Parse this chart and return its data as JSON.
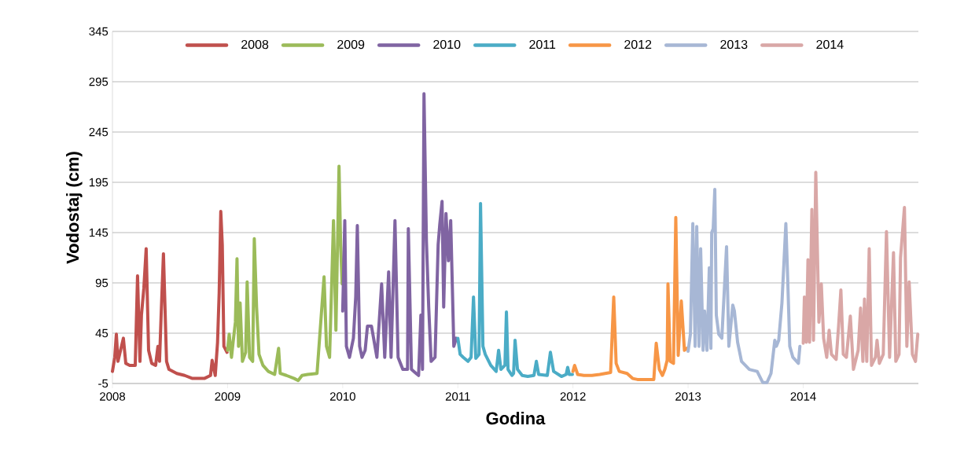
{
  "chart_data": {
    "type": "line",
    "xlabel": "Godina",
    "ylabel": "Vodostaj (cm)",
    "xlim": [
      2008,
      2015
    ],
    "xticks": [
      2008,
      2009,
      2010,
      2011,
      2012,
      2013,
      2014
    ],
    "ylim": [
      -5,
      345
    ],
    "yticks": [
      -5,
      45,
      95,
      145,
      195,
      245,
      295,
      345
    ],
    "grid": "y",
    "legend": "top",
    "line_style": "solid",
    "series": [
      {
        "name": "2008",
        "color": "#c0504d",
        "x": [
          2008.0,
          2008.02,
          2008.034,
          2008.048,
          2008.095,
          2008.116,
          2008.15,
          2008.198,
          2008.218,
          2008.239,
          2008.252,
          2008.273,
          2008.293,
          2008.314,
          2008.341,
          2008.375,
          2008.395,
          2008.409,
          2008.423,
          2008.443,
          2008.47,
          2008.491,
          2008.559,
          2008.627,
          2008.695,
          2008.798,
          2008.852,
          2008.866,
          2008.893,
          2008.913,
          2008.927,
          2008.941,
          2008.954,
          2008.968,
          2008.995
        ],
        "values": [
          7,
          21,
          44,
          17,
          40,
          15,
          13,
          13,
          102,
          17,
          63,
          90,
          129,
          28,
          15,
          13,
          32,
          17,
          63,
          124,
          17,
          9,
          5,
          3,
          0,
          0,
          3,
          18,
          3,
          36,
          85,
          166,
          133,
          32,
          26
        ]
      },
      {
        "name": "2009",
        "color": "#9bbb59",
        "x": [
          2009.0,
          2009.014,
          2009.034,
          2009.048,
          2009.068,
          2009.082,
          2009.095,
          2009.109,
          2009.129,
          2009.157,
          2009.17,
          2009.191,
          2009.218,
          2009.232,
          2009.252,
          2009.273,
          2009.307,
          2009.354,
          2009.409,
          2009.443,
          2009.457,
          2009.511,
          2009.579,
          2009.613,
          2009.647,
          2009.695,
          2009.777,
          2009.838,
          2009.859,
          2009.886,
          2009.92,
          2009.941,
          2009.968,
          2009.982,
          2009.995
        ],
        "values": [
          28,
          44,
          21,
          36,
          56,
          119,
          32,
          75,
          17,
          26,
          96,
          21,
          17,
          139,
          71,
          24,
          13,
          7,
          4,
          30,
          5,
          3,
          0,
          -2,
          3,
          4,
          5,
          101,
          32,
          21,
          157,
          48,
          211,
          133,
          94
        ]
      },
      {
        "name": "2010",
        "color": "#8064a2",
        "x": [
          2010.0,
          2010.018,
          2010.032,
          2010.059,
          2010.093,
          2010.113,
          2010.127,
          2010.147,
          2010.168,
          2010.195,
          2010.215,
          2010.25,
          2010.297,
          2010.338,
          2010.365,
          2010.399,
          2010.42,
          2010.454,
          2010.481,
          2010.522,
          2010.563,
          2010.57,
          2010.597,
          2010.638,
          2010.659,
          2010.679,
          2010.693,
          2010.706,
          2010.727,
          2010.747,
          2010.768,
          2010.802,
          2010.829,
          2010.843,
          2010.863,
          2010.877,
          2010.897,
          2010.918,
          2010.938,
          2010.965,
          2010.986
        ],
        "values": [
          67,
          157,
          32,
          21,
          40,
          81,
          152,
          32,
          21,
          28,
          52,
          52,
          21,
          94,
          21,
          106,
          21,
          157,
          21,
          9,
          9,
          149,
          9,
          5,
          3,
          63,
          9,
          283,
          137,
          71,
          17,
          21,
          133,
          153,
          176,
          71,
          164,
          117,
          157,
          32,
          40
        ]
      },
      {
        "name": "2011",
        "color": "#4bacc6",
        "x": [
          2011.0,
          2011.02,
          2011.047,
          2011.088,
          2011.115,
          2011.136,
          2011.156,
          2011.184,
          2011.197,
          2011.218,
          2011.238,
          2011.286,
          2011.333,
          2011.354,
          2011.374,
          2011.409,
          2011.422,
          2011.436,
          2011.47,
          2011.484,
          2011.497,
          2011.518,
          2011.559,
          2011.607,
          2011.661,
          2011.682,
          2011.702,
          2011.777,
          2011.804,
          2011.832,
          2011.9,
          2011.941,
          2011.954,
          2011.968,
          2011.995
        ],
        "values": [
          40,
          24,
          21,
          17,
          21,
          81,
          20,
          24,
          174,
          32,
          24,
          13,
          7,
          28,
          9,
          13,
          66,
          9,
          3,
          5,
          38,
          9,
          3,
          2,
          3,
          17,
          4,
          3,
          26,
          7,
          2,
          4,
          11,
          4,
          4
        ]
      },
      {
        "name": "2012",
        "color": "#f79646",
        "x": [
          2012.0,
          2012.014,
          2012.041,
          2012.095,
          2012.164,
          2012.232,
          2012.279,
          2012.327,
          2012.354,
          2012.375,
          2012.402,
          2012.47,
          2012.518,
          2012.56,
          2012.648,
          2012.702,
          2012.723,
          2012.75,
          2012.777,
          2012.798,
          2012.818,
          2012.825,
          2012.845,
          2012.873,
          2012.893,
          2012.914,
          2012.941,
          2012.968,
          2012.989
        ],
        "values": [
          7,
          13,
          4,
          3,
          3,
          4,
          5,
          6,
          81,
          15,
          7,
          5,
          0,
          -1,
          -1,
          -1,
          35,
          9,
          3,
          9,
          18,
          94,
          17,
          15,
          160,
          23,
          77,
          28,
          30
        ]
      },
      {
        "name": "2013",
        "color": "#a7b7d5",
        "x": [
          2013.0,
          2013.02,
          2013.041,
          2013.061,
          2013.075,
          2013.095,
          2013.109,
          2013.13,
          2013.143,
          2013.164,
          2013.184,
          2013.198,
          2013.205,
          2013.218,
          2013.232,
          2013.245,
          2013.266,
          2013.293,
          2013.334,
          2013.354,
          2013.388,
          2013.402,
          2013.43,
          2013.464,
          2013.532,
          2013.6,
          2013.648,
          2013.685,
          2013.72,
          2013.753,
          2013.767,
          2013.787,
          2013.815,
          2013.849,
          2013.862,
          2013.883,
          2013.91,
          2013.958,
          2013.971
        ],
        "values": [
          27,
          44,
          154,
          32,
          151,
          32,
          129,
          28,
          67,
          28,
          110,
          30,
          145,
          149,
          188,
          63,
          44,
          40,
          131,
          32,
          73,
          67,
          36,
          17,
          9,
          7,
          -4,
          -4,
          5,
          38,
          32,
          38,
          75,
          154,
          110,
          32,
          21,
          15,
          32
        ]
      },
      {
        "name": "2014",
        "color": "#d9a7a6",
        "x": [
          2014.0,
          2014.01,
          2014.027,
          2014.041,
          2014.055,
          2014.075,
          2014.089,
          2014.109,
          2014.136,
          2014.157,
          2014.177,
          2014.204,
          2014.225,
          2014.245,
          2014.286,
          2014.307,
          2014.327,
          2014.348,
          2014.375,
          2014.409,
          2014.436,
          2014.477,
          2014.498,
          2014.518,
          2014.532,
          2014.552,
          2014.573,
          2014.593,
          2014.627,
          2014.641,
          2014.661,
          2014.695,
          2014.723,
          2014.75,
          2014.784,
          2014.804,
          2014.832,
          2014.845,
          2014.879,
          2014.9,
          2014.92,
          2014.948,
          2014.975,
          2014.995
        ],
        "values": [
          35,
          81,
          36,
          118,
          36,
          168,
          38,
          205,
          56,
          94,
          40,
          21,
          48,
          24,
          19,
          52,
          88,
          24,
          21,
          62,
          9,
          28,
          70,
          17,
          79,
          17,
          129,
          13,
          21,
          38,
          15,
          24,
          146,
          21,
          125,
          17,
          24,
          120,
          170,
          32,
          96,
          24,
          17,
          44
        ]
      }
    ]
  }
}
